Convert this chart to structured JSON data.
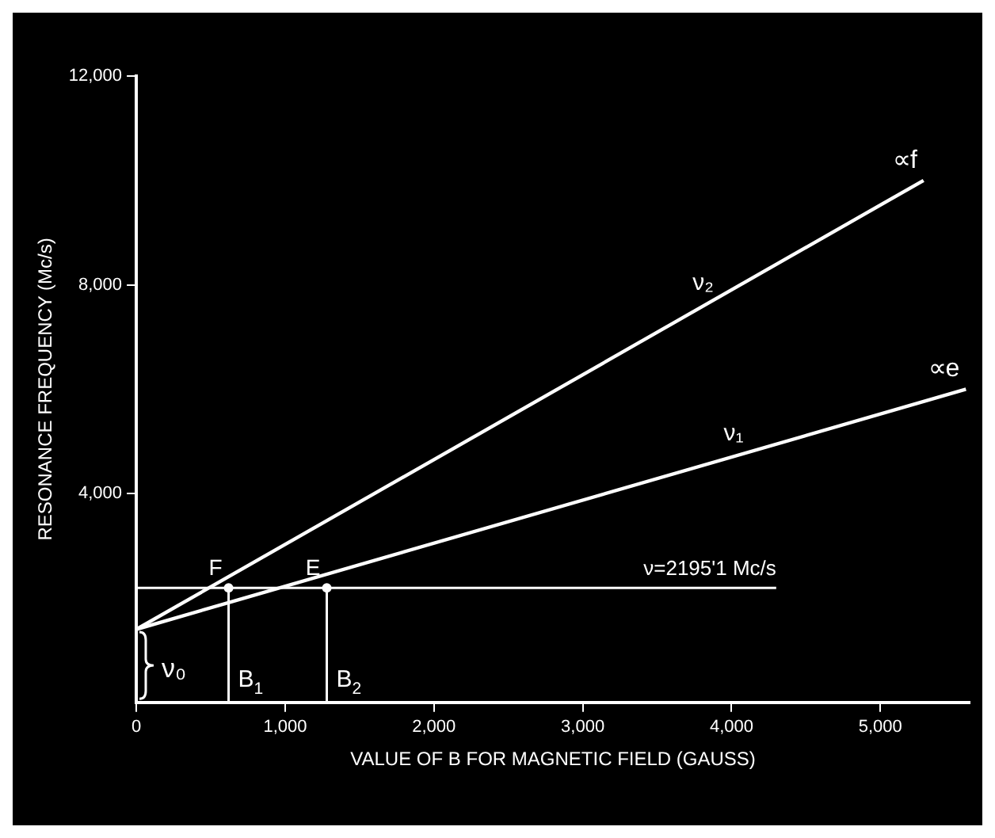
{
  "chart_data": {
    "type": "line",
    "xlabel": "VALUE OF B FOR MAGNETIC FIELD (GAUSS)",
    "ylabel": "RESONANCE FREQUENCY (Mc/s)",
    "series": [
      {
        "name": "ν₂",
        "color": "#ffffff",
        "x": [
          0,
          5290
        ],
        "values": [
          1400,
          10000
        ]
      },
      {
        "name": "ν₁",
        "color": "#ffffff",
        "x": [
          0,
          5575
        ],
        "values": [
          1400,
          6000
        ]
      }
    ],
    "xlim": [
      0,
      5600
    ],
    "xticks": [
      0,
      {
        "value": 1000,
        "label": "1,000"
      },
      {
        "value": 2000,
        "label": "2,000"
      },
      {
        "value": 3000,
        "label": "3,000"
      },
      {
        "value": 4000,
        "label": "4,000"
      },
      {
        "value": 5000,
        "label": "5,000"
      }
    ],
    "ylim": [
      0,
      12000
    ],
    "yticks": [
      {
        "value": 4000,
        "label": "4,000"
      },
      {
        "value": 8000,
        "label": "8,000"
      },
      {
        "value": 12000,
        "label": "12,000"
      }
    ],
    "ref_lines": [
      {
        "axis": "y",
        "value": 2195.1,
        "label": "ν=2195'1 Mc/s",
        "color": "#ffffff"
      },
      {
        "axis": "x",
        "value": 620,
        "label": "B$_{1}$",
        "color": "#ffffff"
      },
      {
        "axis": "x",
        "value": 1280,
        "label": "B$_{2}$",
        "color": "#ffffff"
      }
    ],
    "annotations": [
      {
        "text": "∝f",
        "x": 5290,
        "y": 10000
      },
      {
        "text": "∝e",
        "x": 5575,
        "y": 6000
      },
      {
        "text": "F",
        "x": 620,
        "y": 2195.1
      },
      {
        "text": "E",
        "x": 1280,
        "y": 2195.1
      },
      "ν₀"
    ],
    "marker": "none",
    "legend": false
  }
}
